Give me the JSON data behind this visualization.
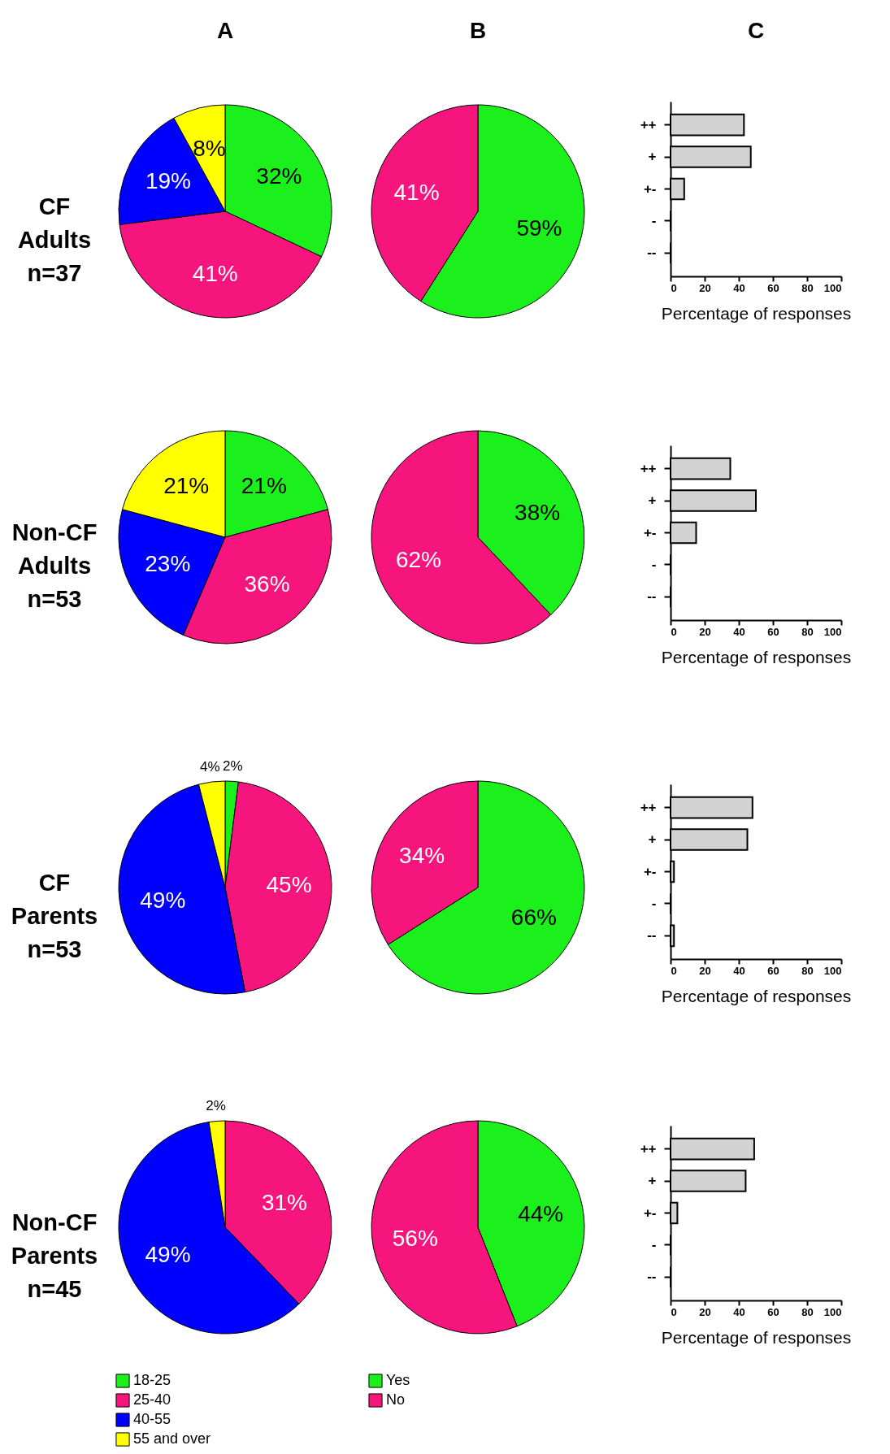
{
  "chart_data": [
    {
      "type": "pie",
      "title": "A",
      "annotations": [
        "CF Adults n=37"
      ],
      "values": [
        32,
        41,
        19,
        8
      ],
      "colors": [
        "#1cf01c",
        "#f5157d",
        "#0000ff",
        "#ffff00"
      ],
      "value_labels": [
        "32%",
        "41%",
        "19%",
        "8%"
      ]
    },
    {
      "type": "pie",
      "title": "B",
      "values": [
        59,
        41
      ],
      "colors": [
        "#1cf01c",
        "#f5157d"
      ],
      "value_labels": [
        "59%",
        "41%"
      ]
    },
    {
      "type": "bar",
      "title": "C",
      "orientation": "horizontal",
      "categories": [
        "++",
        "+",
        "+-",
        "-",
        "--"
      ],
      "values": [
        43,
        47,
        8,
        0,
        0
      ],
      "color": "#d3d3d3",
      "xlim": [
        0,
        100
      ],
      "xticks": [
        0,
        20,
        40,
        60,
        80,
        100
      ],
      "xlabel": "Percentage of responses"
    },
    {
      "type": "pie",
      "annotations": [
        "Non-CF Adults n=53"
      ],
      "values": [
        21,
        36,
        23,
        21
      ],
      "colors": [
        "#1cf01c",
        "#f5157d",
        "#0000ff",
        "#ffff00"
      ],
      "value_labels": [
        "21%",
        "36%",
        "23%",
        "21%"
      ]
    },
    {
      "type": "pie",
      "values": [
        38,
        62
      ],
      "colors": [
        "#1cf01c",
        "#f5157d"
      ],
      "value_labels": [
        "38%",
        "62%"
      ]
    },
    {
      "type": "bar",
      "orientation": "horizontal",
      "categories": [
        "++",
        "+",
        "+-",
        "-",
        "--"
      ],
      "values": [
        35,
        50,
        15,
        0,
        0
      ],
      "color": "#d3d3d3",
      "xlim": [
        0,
        100
      ],
      "xticks": [
        0,
        20,
        40,
        60,
        80,
        100
      ],
      "xlabel": "Percentage of responses"
    },
    {
      "type": "pie",
      "annotations": [
        "CF Parents n=53"
      ],
      "values": [
        2,
        45,
        49,
        4
      ],
      "colors": [
        "#1cf01c",
        "#f5157d",
        "#0000ff",
        "#ffff00"
      ],
      "value_labels": [
        "2%",
        "45%",
        "49%",
        "4%"
      ]
    },
    {
      "type": "pie",
      "values": [
        66,
        34
      ],
      "colors": [
        "#1cf01c",
        "#f5157d"
      ],
      "value_labels": [
        "66%",
        "34%"
      ]
    },
    {
      "type": "bar",
      "orientation": "horizontal",
      "categories": [
        "++",
        "+",
        "+-",
        "-",
        "--"
      ],
      "values": [
        48,
        45,
        2,
        0,
        2
      ],
      "color": "#d3d3d3",
      "xlim": [
        0,
        100
      ],
      "xticks": [
        0,
        20,
        40,
        60,
        80,
        100
      ],
      "xlabel": "Percentage of responses"
    },
    {
      "type": "pie",
      "annotations": [
        "Non-CF Parents n=45"
      ],
      "categories": [
        "18-25",
        "25-40",
        "40-55",
        "55 and over"
      ],
      "values": [
        0,
        31,
        49,
        2
      ],
      "colors": [
        "#1cf01c",
        "#f5157d",
        "#0000ff",
        "#ffff00"
      ],
      "value_labels": [
        null,
        "31%",
        "49%",
        "2%"
      ],
      "legend": "bottom"
    },
    {
      "type": "pie",
      "categories": [
        "Yes",
        "No"
      ],
      "values": [
        44,
        56
      ],
      "colors": [
        "#1cf01c",
        "#f5157d"
      ],
      "value_labels": [
        "44%",
        "56%"
      ],
      "legend": "bottom"
    },
    {
      "type": "bar",
      "orientation": "horizontal",
      "categories": [
        "++",
        "+",
        "+-",
        "-",
        "--"
      ],
      "values": [
        49,
        44,
        4,
        0,
        0
      ],
      "color": "#d3d3d3",
      "xlim": [
        0,
        100
      ],
      "xticks": [
        0,
        20,
        40,
        60,
        80,
        100
      ],
      "xlabel": "Percentage of responses"
    }
  ]
}
